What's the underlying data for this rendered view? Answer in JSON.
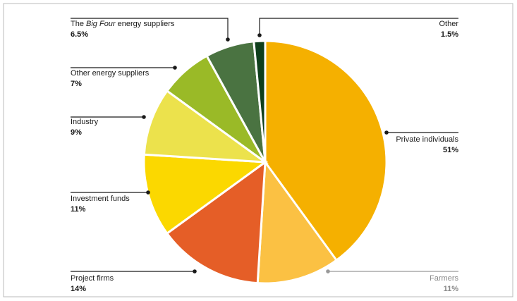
{
  "chart_data": {
    "type": "pie",
    "slices": [
      {
        "label": [
          "Private individuals"
        ],
        "value": 51,
        "value_label": "51%",
        "color": "#f5b000",
        "part": {
          "label": [
            "Farmers"
          ],
          "value": 11,
          "value_label": "11%",
          "color": "#fbc143"
        }
      },
      {
        "label": [
          "Project firms"
        ],
        "value": 14,
        "value_label": "14%",
        "color": "#e55e27"
      },
      {
        "label": [
          "Investment funds"
        ],
        "value": 11,
        "value_label": "11%",
        "color": "#fbd800"
      },
      {
        "label": [
          "Industry"
        ],
        "value": 9,
        "value_label": "9%",
        "color": "#ece24c"
      },
      {
        "label": [
          "Other energy suppliers"
        ],
        "value": 7,
        "value_label": "7%",
        "color": "#9aba27"
      },
      {
        "label": [
          "The ",
          "Big Four",
          " energy suppliers"
        ],
        "value": 6.5,
        "value_label": "6.5%",
        "color": "#4a7341"
      },
      {
        "label": [
          "Other"
        ],
        "value": 1.5,
        "value_label": "1.5%",
        "color": "#0f3f1c"
      }
    ]
  }
}
